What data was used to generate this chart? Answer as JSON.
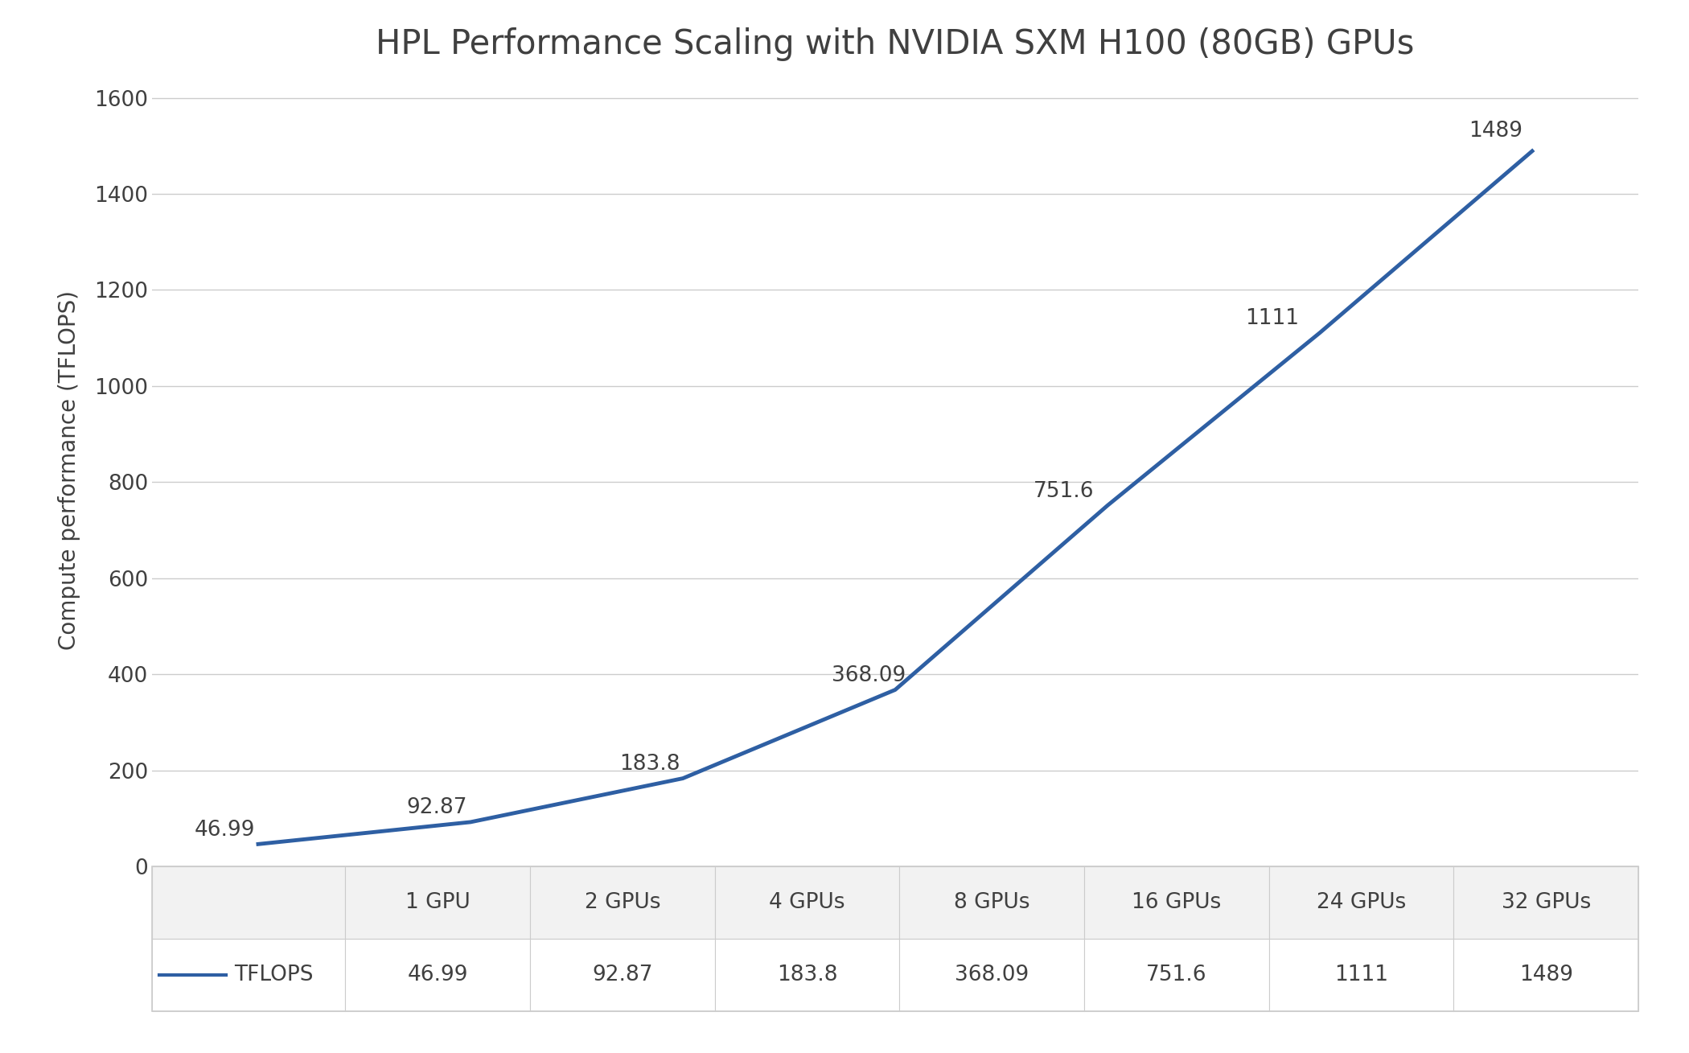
{
  "title": "HPL Performance Scaling with NVIDIA SXM H100 (80GB) GPUs",
  "ylabel": "Compute performance (TFLOPS)",
  "categories": [
    "1 GPU",
    "2 GPUs",
    "4 GPUs",
    "8 GPUs",
    "16 GPUs",
    "24 GPUs",
    "32 GPUs"
  ],
  "values": [
    46.99,
    92.87,
    183.8,
    368.09,
    751.6,
    1111,
    1489
  ],
  "label_texts": [
    "46.99",
    "92.87",
    "183.8",
    "368.09",
    "751.6",
    "1111",
    "1489"
  ],
  "line_color": "#2E5FA3",
  "ylim": [
    0,
    1650
  ],
  "yticks": [
    0,
    200,
    400,
    600,
    800,
    1000,
    1200,
    1400,
    1600
  ],
  "title_fontsize": 30,
  "axis_label_fontsize": 20,
  "tick_fontsize": 19,
  "annotation_fontsize": 19,
  "table_row_label": "TFLOPS",
  "background_color": "#ffffff",
  "grid_color": "#cccccc",
  "line_width": 3.5,
  "table_header_bg": "#f2f2f2",
  "table_data_bg": "#ffffff",
  "table_border_color": "#cccccc",
  "text_color": "#404040"
}
